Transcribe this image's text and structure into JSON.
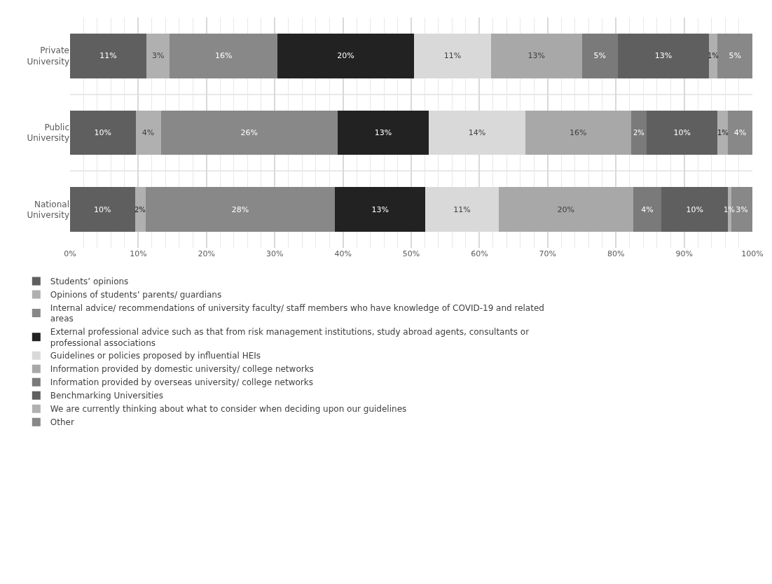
{
  "chart_data": {
    "type": "bar",
    "orientation": "horizontal",
    "stacked": true,
    "categories": [
      "Private University",
      "Public University",
      "National University"
    ],
    "series": [
      {
        "name": "Students’ opinions",
        "color": "#5f5f5f",
        "values": [
          11.2,
          9.6,
          9.5
        ],
        "value_labels": [
          "11%",
          "10%",
          "10%"
        ]
      },
      {
        "name": "Opinions of students’ parents/ guardians",
        "color": "#b0b0b0",
        "values": [
          3.4,
          3.7,
          1.6
        ],
        "value_labels": [
          "3%",
          "4%",
          "2%"
        ]
      },
      {
        "name": "Internal advice/ recommendations of university faculty/ staff members who have knowledge of COVID-19 and related areas",
        "color": "#888888",
        "values": [
          15.8,
          25.9,
          27.7
        ],
        "value_labels": [
          "16%",
          "26%",
          "28%"
        ]
      },
      {
        "name": "External professional advice such as that from risk management institutions, study abroad agents, consultants or professional associations",
        "color": "#222222",
        "values": [
          20.0,
          13.4,
          13.3
        ],
        "value_labels": [
          "20%",
          "13%",
          "13%"
        ]
      },
      {
        "name": "Guidelines or policies proposed by influential HEIs",
        "color": "#d9d9d9",
        "values": [
          11.3,
          14.1,
          10.7
        ],
        "value_labels": [
          "11%",
          "14%",
          "11%"
        ]
      },
      {
        "name": "Information provided by domestic university/ college networks",
        "color": "#a8a8a8",
        "values": [
          13.3,
          15.5,
          19.7
        ],
        "value_labels": [
          "13%",
          "16%",
          "20%"
        ]
      },
      {
        "name": "Information provided by overseas university/ college networks",
        "color": "#7a7a7a",
        "values": [
          5.3,
          2.3,
          4.2
        ],
        "value_labels": [
          "5%",
          "2%",
          "4%"
        ]
      },
      {
        "name": "Benchmarking Universities",
        "color": "#5f5f5f",
        "values": [
          13.3,
          10.4,
          9.7
        ],
        "value_labels": [
          "13%",
          "10%",
          "10%"
        ]
      },
      {
        "name": "We are currently thinking about what to consider when deciding upon our guidelines",
        "color": "#b0b0b0",
        "values": [
          1.3,
          1.5,
          0.5
        ],
        "value_labels": [
          "1%",
          "1%",
          "1%"
        ]
      },
      {
        "name": "Other",
        "color": "#888888",
        "values": [
          5.1,
          3.6,
          3.1
        ],
        "value_labels": [
          "5%",
          "4%",
          "3%"
        ]
      }
    ],
    "xlim": [
      0,
      100
    ],
    "xticks": [
      {
        "value": 0,
        "label": "0%"
      },
      {
        "value": 10,
        "label": "10%"
      },
      {
        "value": 20,
        "label": "20%"
      },
      {
        "value": 30,
        "label": "30%"
      },
      {
        "value": 40,
        "label": "40%"
      },
      {
        "value": 50,
        "label": "50%"
      },
      {
        "value": 60,
        "label": "60%"
      },
      {
        "value": 70,
        "label": "70%"
      },
      {
        "value": 80,
        "label": "80%"
      },
      {
        "value": 90,
        "label": "90%"
      },
      {
        "value": 100,
        "label": "100%"
      }
    ],
    "grid": true,
    "legend": "bottom"
  }
}
